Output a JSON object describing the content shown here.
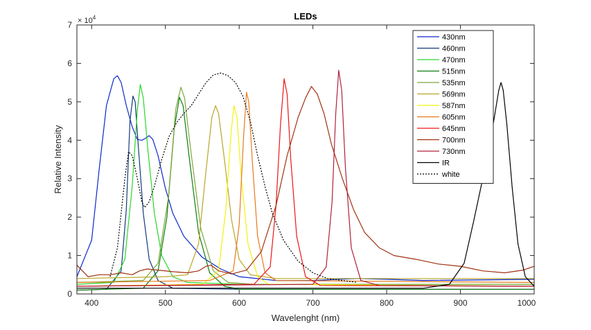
{
  "chart_data": {
    "type": "line",
    "title": "LEDs",
    "xlabel": "Wavelenght (nm)",
    "ylabel": "Relative Intensity",
    "y_exponent_label": "× 10",
    "y_exponent_power": "4",
    "xlim": [
      380,
      1000
    ],
    "ylim": [
      0,
      7
    ],
    "xticks": [
      "400",
      "500",
      "600",
      "700",
      "800",
      "900",
      "1000"
    ],
    "xtick_values": [
      400,
      500,
      600,
      700,
      800,
      900,
      1000
    ],
    "yticks": [
      "0",
      "1",
      "2",
      "3",
      "4",
      "5",
      "6",
      "7"
    ],
    "ytick_values": [
      0,
      1,
      2,
      3,
      4,
      5,
      6,
      7
    ],
    "grid": false,
    "legend_position": "top-right",
    "series": [
      {
        "name": "430nm",
        "color": "#0d27c9",
        "dash": "",
        "points": [
          [
            380,
            0.45
          ],
          [
            400,
            1.4
          ],
          [
            410,
            3.2
          ],
          [
            420,
            4.9
          ],
          [
            430,
            5.6
          ],
          [
            435,
            5.68
          ],
          [
            440,
            5.5
          ],
          [
            447,
            4.9
          ],
          [
            455,
            4.35
          ],
          [
            462,
            4.02
          ],
          [
            468,
            4.0
          ],
          [
            473,
            4.05
          ],
          [
            478,
            4.12
          ],
          [
            483,
            4.02
          ],
          [
            490,
            3.6
          ],
          [
            500,
            2.75
          ],
          [
            510,
            2.1
          ],
          [
            525,
            1.5
          ],
          [
            550,
            0.95
          ],
          [
            575,
            0.65
          ],
          [
            600,
            0.45
          ],
          [
            650,
            0.35
          ],
          [
            700,
            0.35
          ],
          [
            760,
            0.4
          ],
          [
            800,
            0.38
          ],
          [
            850,
            0.35
          ],
          [
            1000,
            0.38
          ]
        ]
      },
      {
        "name": "460nm",
        "color": "#123a7a",
        "dash": "",
        "points": [
          [
            380,
            0.1
          ],
          [
            420,
            0.12
          ],
          [
            440,
            0.6
          ],
          [
            447,
            2.2
          ],
          [
            452,
            4.5
          ],
          [
            456,
            5.15
          ],
          [
            459,
            5.0
          ],
          [
            463,
            3.9
          ],
          [
            470,
            2.1
          ],
          [
            478,
            0.9
          ],
          [
            490,
            0.35
          ],
          [
            510,
            0.15
          ],
          [
            600,
            0.12
          ],
          [
            800,
            0.12
          ],
          [
            1000,
            0.12
          ]
        ]
      },
      {
        "name": "470nm",
        "color": "#2ad62a",
        "dash": "",
        "points": [
          [
            380,
            0.25
          ],
          [
            430,
            0.3
          ],
          [
            445,
            0.9
          ],
          [
            455,
            2.8
          ],
          [
            462,
            4.8
          ],
          [
            466,
            5.45
          ],
          [
            470,
            5.1
          ],
          [
            476,
            3.8
          ],
          [
            485,
            2.1
          ],
          [
            495,
            1.0
          ],
          [
            510,
            0.45
          ],
          [
            530,
            0.3
          ],
          [
            600,
            0.25
          ],
          [
            800,
            0.25
          ],
          [
            1000,
            0.25
          ]
        ]
      },
      {
        "name": "515nm",
        "color": "#0e7d0e",
        "dash": "",
        "points": [
          [
            380,
            0.1
          ],
          [
            470,
            0.15
          ],
          [
            490,
            0.6
          ],
          [
            502,
            2.0
          ],
          [
            512,
            4.3
          ],
          [
            519,
            5.12
          ],
          [
            524,
            4.9
          ],
          [
            532,
            3.6
          ],
          [
            545,
            1.6
          ],
          [
            560,
            0.55
          ],
          [
            580,
            0.2
          ],
          [
            600,
            0.12
          ],
          [
            1000,
            0.12
          ]
        ]
      },
      {
        "name": "535nm",
        "color": "#7ea83a",
        "dash": "",
        "points": [
          [
            380,
            0.3
          ],
          [
            470,
            0.35
          ],
          [
            490,
            0.8
          ],
          [
            504,
            2.5
          ],
          [
            514,
            4.8
          ],
          [
            521,
            5.38
          ],
          [
            526,
            5.1
          ],
          [
            534,
            3.8
          ],
          [
            548,
            1.7
          ],
          [
            565,
            0.6
          ],
          [
            585,
            0.3
          ],
          [
            620,
            0.25
          ],
          [
            1000,
            0.25
          ]
        ]
      },
      {
        "name": "569nm",
        "color": "#b8a628",
        "dash": "",
        "points": [
          [
            380,
            0.4
          ],
          [
            500,
            0.45
          ],
          [
            530,
            0.5
          ],
          [
            545,
            1.3
          ],
          [
            555,
            3.2
          ],
          [
            563,
            4.6
          ],
          [
            568,
            4.9
          ],
          [
            572,
            4.7
          ],
          [
            580,
            3.5
          ],
          [
            590,
            1.9
          ],
          [
            600,
            0.9
          ],
          [
            615,
            0.5
          ],
          [
            650,
            0.4
          ],
          [
            1000,
            0.4
          ]
        ]
      },
      {
        "name": "587nm",
        "color": "#f2f20f",
        "dash": "",
        "points": [
          [
            380,
            0.2
          ],
          [
            550,
            0.25
          ],
          [
            572,
            0.6
          ],
          [
            582,
            2.2
          ],
          [
            589,
            4.2
          ],
          [
            593,
            4.9
          ],
          [
            597,
            4.6
          ],
          [
            603,
            3.0
          ],
          [
            612,
            1.3
          ],
          [
            625,
            0.45
          ],
          [
            640,
            0.25
          ],
          [
            1000,
            0.2
          ]
        ]
      },
      {
        "name": "605nm",
        "color": "#e8791a",
        "dash": "",
        "points": [
          [
            380,
            0.3
          ],
          [
            560,
            0.35
          ],
          [
            592,
            0.6
          ],
          [
            600,
            1.8
          ],
          [
            606,
            4.1
          ],
          [
            610,
            5.25
          ],
          [
            613,
            5.0
          ],
          [
            618,
            3.4
          ],
          [
            625,
            1.5
          ],
          [
            635,
            0.55
          ],
          [
            650,
            0.35
          ],
          [
            1000,
            0.3
          ]
        ]
      },
      {
        "name": "645nm",
        "color": "#ee1414",
        "dash": "",
        "points": [
          [
            380,
            0.2
          ],
          [
            620,
            0.25
          ],
          [
            642,
            0.7
          ],
          [
            650,
            2.3
          ],
          [
            656,
            4.4
          ],
          [
            661,
            5.6
          ],
          [
            665,
            5.2
          ],
          [
            670,
            3.5
          ],
          [
            678,
            1.5
          ],
          [
            690,
            0.45
          ],
          [
            710,
            0.22
          ],
          [
            1000,
            0.2
          ]
        ]
      },
      {
        "name": "700nm",
        "color": "#a03010",
        "dash": "",
        "points": [
          [
            380,
            0.75
          ],
          [
            395,
            0.45
          ],
          [
            410,
            0.5
          ],
          [
            425,
            0.5
          ],
          [
            440,
            0.55
          ],
          [
            455,
            0.5
          ],
          [
            465,
            0.6
          ],
          [
            475,
            0.65
          ],
          [
            490,
            0.62
          ],
          [
            510,
            0.58
          ],
          [
            530,
            0.55
          ],
          [
            545,
            0.6
          ],
          [
            555,
            0.72
          ],
          [
            562,
            0.75
          ],
          [
            572,
            0.6
          ],
          [
            590,
            0.52
          ],
          [
            610,
            0.62
          ],
          [
            630,
            1.1
          ],
          [
            650,
            2.3
          ],
          [
            665,
            3.6
          ],
          [
            680,
            4.6
          ],
          [
            690,
            5.1
          ],
          [
            698,
            5.4
          ],
          [
            706,
            5.2
          ],
          [
            715,
            4.7
          ],
          [
            725,
            3.9
          ],
          [
            740,
            3.0
          ],
          [
            755,
            2.2
          ],
          [
            770,
            1.6
          ],
          [
            790,
            1.2
          ],
          [
            810,
            1.0
          ],
          [
            840,
            0.9
          ],
          [
            870,
            0.78
          ],
          [
            900,
            0.72
          ],
          [
            930,
            0.6
          ],
          [
            960,
            0.55
          ],
          [
            985,
            0.62
          ],
          [
            1000,
            0.72
          ]
        ]
      },
      {
        "name": "730nm",
        "color": "#b0203c",
        "dash": "",
        "points": [
          [
            380,
            0.2
          ],
          [
            700,
            0.25
          ],
          [
            718,
            0.7
          ],
          [
            726,
            2.4
          ],
          [
            731,
            4.7
          ],
          [
            735,
            5.82
          ],
          [
            739,
            5.3
          ],
          [
            744,
            3.3
          ],
          [
            752,
            1.2
          ],
          [
            765,
            0.35
          ],
          [
            790,
            0.22
          ],
          [
            1000,
            0.2
          ]
        ]
      },
      {
        "name": "IR",
        "color": "#000000",
        "dash": "",
        "points": [
          [
            380,
            0.15
          ],
          [
            850,
            0.15
          ],
          [
            885,
            0.25
          ],
          [
            905,
            0.8
          ],
          [
            918,
            1.9
          ],
          [
            928,
            2.8
          ],
          [
            938,
            3.7
          ],
          [
            946,
            4.6
          ],
          [
            952,
            5.3
          ],
          [
            955,
            5.5
          ],
          [
            958,
            5.3
          ],
          [
            963,
            4.4
          ],
          [
            970,
            2.8
          ],
          [
            978,
            1.3
          ],
          [
            988,
            0.45
          ],
          [
            1000,
            0.2
          ]
        ]
      },
      {
        "name": "white",
        "color": "#000000",
        "dash": "2,2",
        "points": [
          [
            425,
            0.45
          ],
          [
            435,
            1.2
          ],
          [
            445,
            3.0
          ],
          [
            450,
            3.7
          ],
          [
            455,
            3.6
          ],
          [
            462,
            3.0
          ],
          [
            468,
            2.4
          ],
          [
            472,
            2.25
          ],
          [
            478,
            2.4
          ],
          [
            485,
            2.8
          ],
          [
            495,
            3.5
          ],
          [
            505,
            4.1
          ],
          [
            515,
            4.45
          ],
          [
            525,
            4.7
          ],
          [
            535,
            4.9
          ],
          [
            545,
            5.2
          ],
          [
            555,
            5.5
          ],
          [
            565,
            5.7
          ],
          [
            575,
            5.75
          ],
          [
            585,
            5.68
          ],
          [
            595,
            5.5
          ],
          [
            605,
            5.15
          ],
          [
            615,
            4.5
          ],
          [
            625,
            3.6
          ],
          [
            635,
            2.8
          ],
          [
            645,
            2.1
          ],
          [
            660,
            1.4
          ],
          [
            680,
            0.85
          ],
          [
            700,
            0.55
          ],
          [
            720,
            0.4
          ],
          [
            740,
            0.35
          ],
          [
            760,
            0.3
          ]
        ]
      }
    ]
  }
}
